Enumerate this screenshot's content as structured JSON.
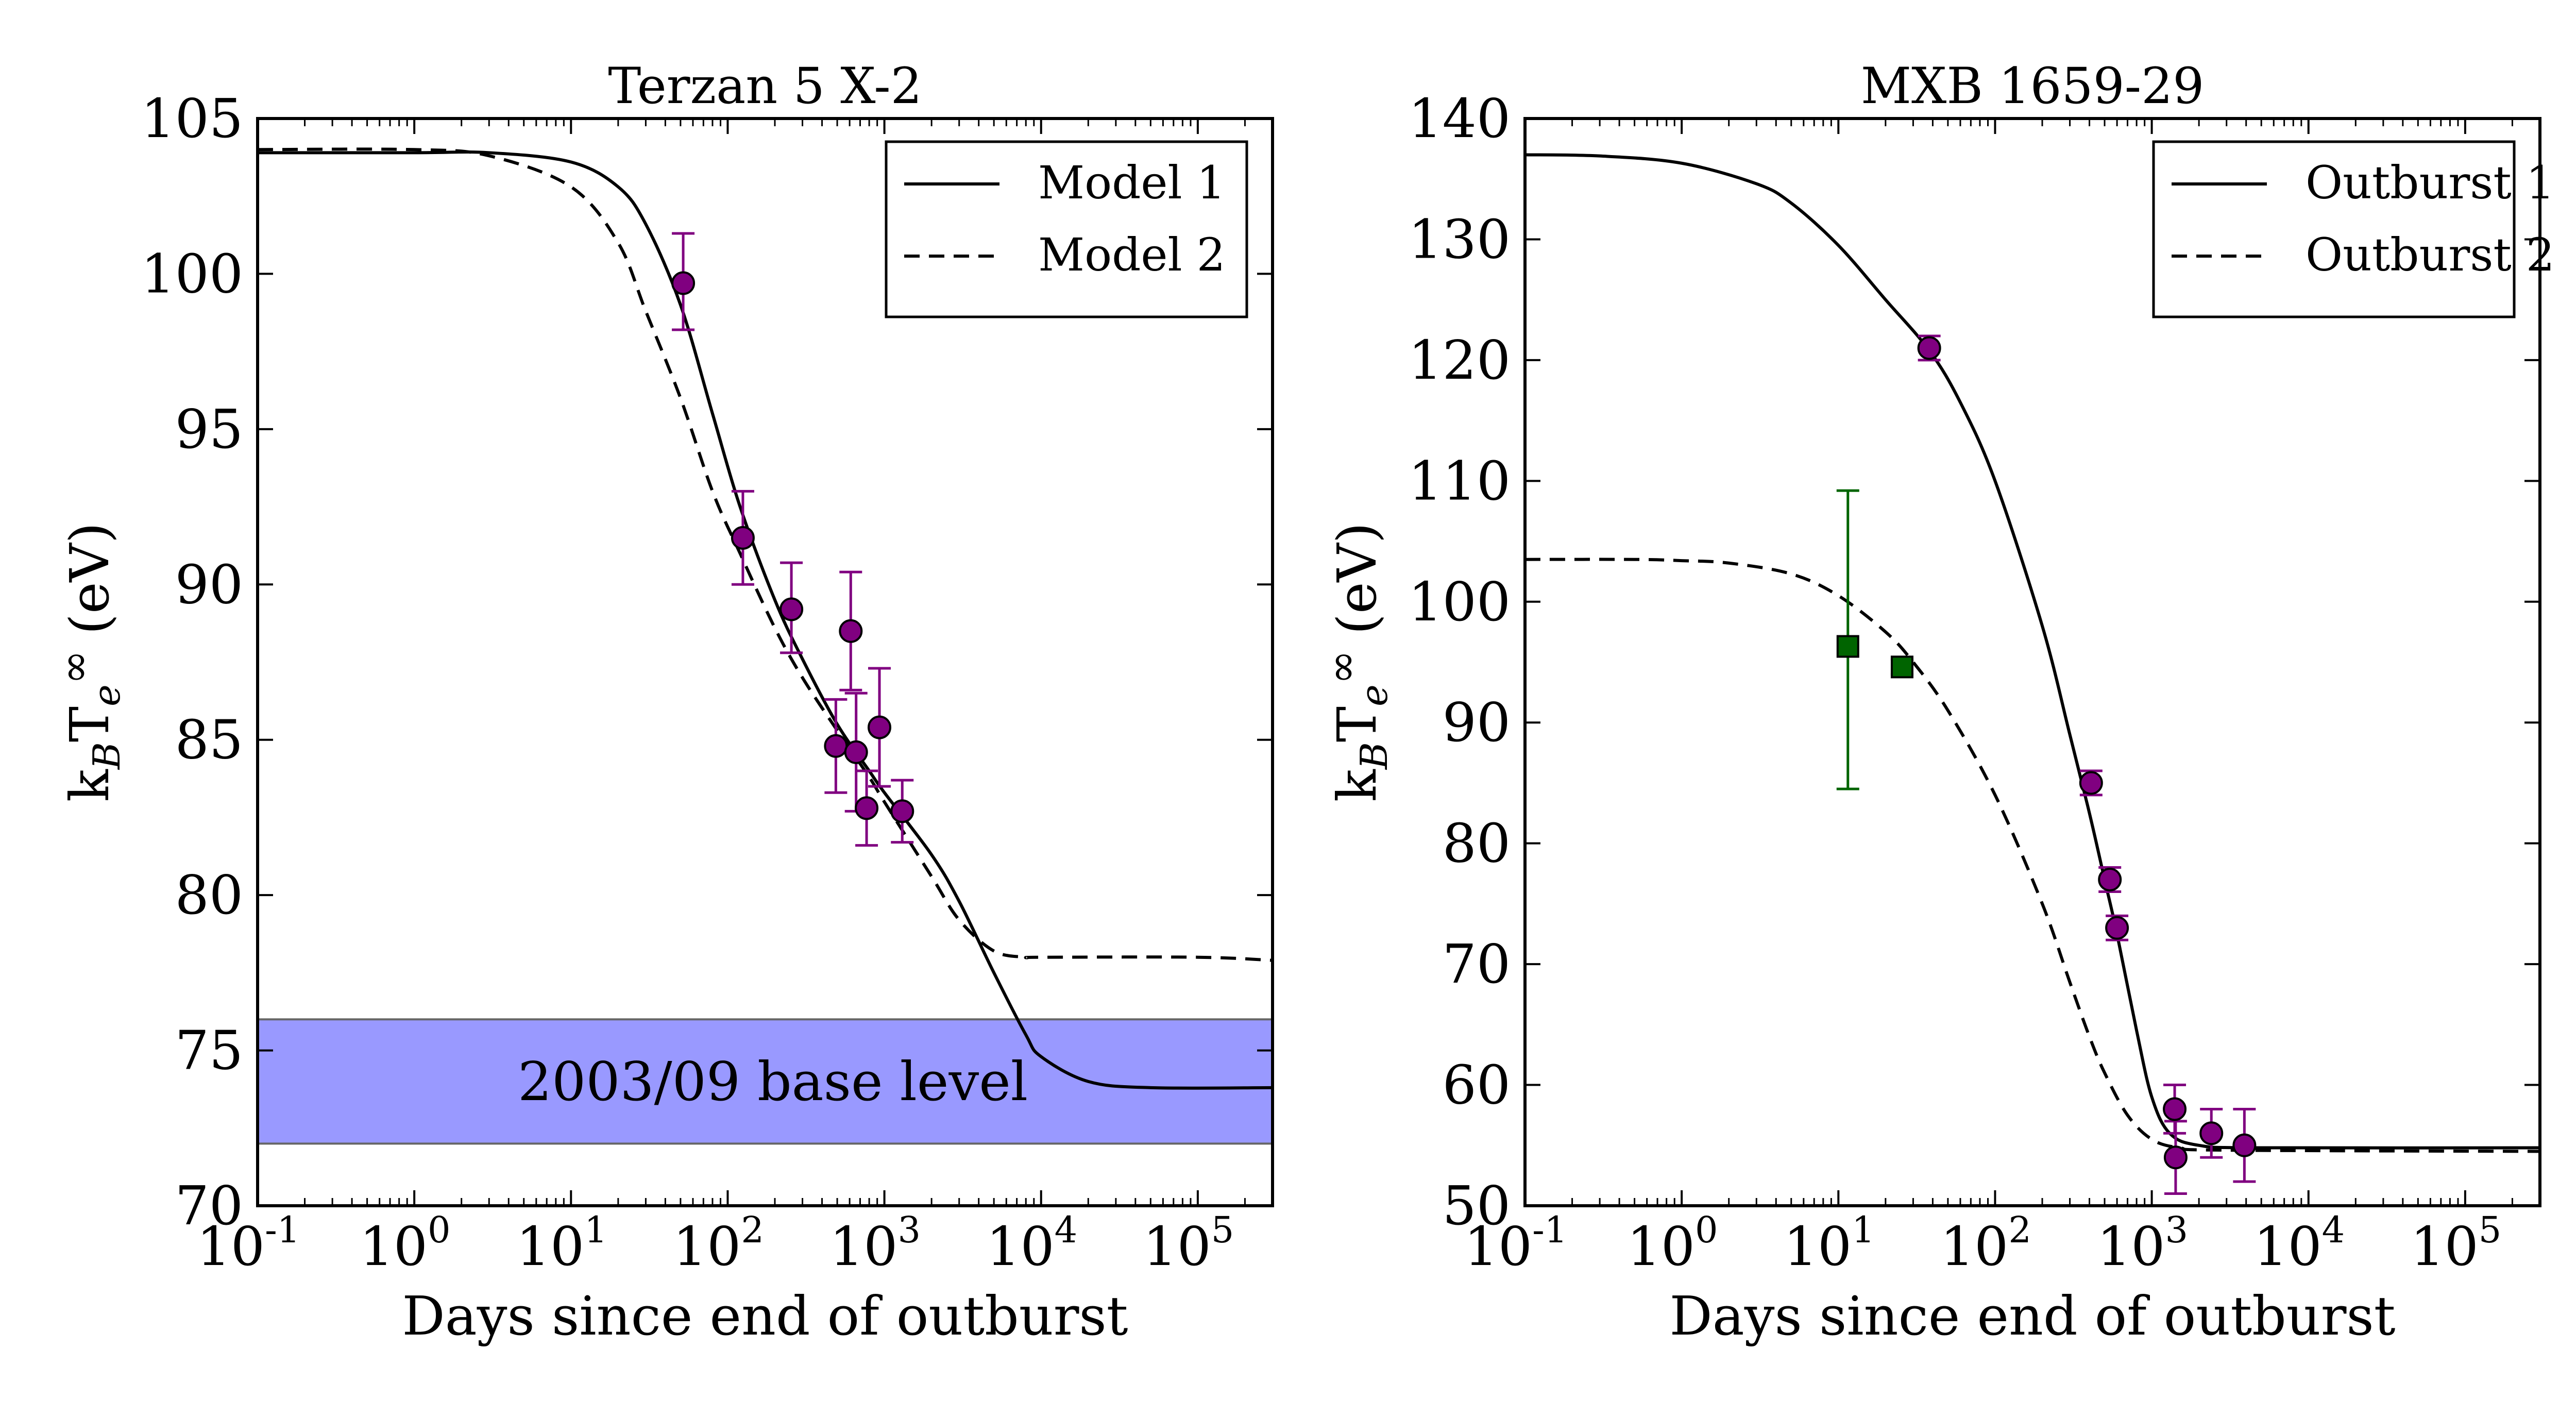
{
  "chart_data": [
    {
      "type": "scatter",
      "title": "Terzan 5 X-2",
      "xlabel": "Days since end of outburst",
      "ylabel_main": "k",
      "ylabel_sub1": "B",
      "ylabel_mid": "T",
      "ylabel_sub2": "e",
      "ylabel_sup": "∞",
      "ylabel_unit": "(eV)",
      "xscale": "log",
      "xlim": [
        0.1,
        300000
      ],
      "ylim": [
        70,
        105
      ],
      "xticks": [
        {
          "value": 0.1,
          "base": "10",
          "exp": "-1"
        },
        {
          "value": 1,
          "base": "10",
          "exp": "0"
        },
        {
          "value": 10,
          "base": "10",
          "exp": "1"
        },
        {
          "value": 100,
          "base": "10",
          "exp": "2"
        },
        {
          "value": 1000,
          "base": "10",
          "exp": "3"
        },
        {
          "value": 10000,
          "base": "10",
          "exp": "4"
        },
        {
          "value": 100000,
          "base": "10",
          "exp": "5"
        }
      ],
      "yticks": [
        70,
        75,
        80,
        85,
        90,
        95,
        100,
        105
      ],
      "legend_position": "top-right",
      "legend": [
        {
          "label": "Model 1",
          "style": "solid"
        },
        {
          "label": "Model 2",
          "style": "dashed"
        }
      ],
      "band": {
        "label": "2003/09 base level",
        "ymin": 72,
        "ymax": 76,
        "color": "#9999ff"
      },
      "lines": [
        {
          "name": "Model 1",
          "style": "solid",
          "color": "#000000",
          "points": [
            [
              0.1,
              103.9
            ],
            [
              1,
              103.9
            ],
            [
              3,
              103.9
            ],
            [
              10,
              103.6
            ],
            [
              20,
              102.8
            ],
            [
              30,
              101.6
            ],
            [
              50,
              99.0
            ],
            [
              80,
              95.5
            ],
            [
              120,
              92.5
            ],
            [
              200,
              89.5
            ],
            [
              300,
              87.6
            ],
            [
              500,
              85.5
            ],
            [
              800,
              84.0
            ],
            [
              1000,
              83.3
            ],
            [
              2000,
              81.3
            ],
            [
              3000,
              79.8
            ],
            [
              5000,
              77.5
            ],
            [
              8000,
              75.5
            ],
            [
              10000,
              74.8
            ],
            [
              20000,
              74.0
            ],
            [
              50000,
              73.8
            ],
            [
              300000,
              73.8
            ]
          ]
        },
        {
          "name": "Model 2",
          "style": "dashed",
          "color": "#000000",
          "points": [
            [
              0.1,
              104.0
            ],
            [
              1,
              104.0
            ],
            [
              3,
              103.8
            ],
            [
              10,
              102.8
            ],
            [
              20,
              101.0
            ],
            [
              30,
              98.8
            ],
            [
              50,
              96.0
            ],
            [
              80,
              93.0
            ],
            [
              120,
              91.0
            ],
            [
              200,
              88.6
            ],
            [
              300,
              87.0
            ],
            [
              500,
              85.3
            ],
            [
              800,
              83.8
            ],
            [
              1000,
              83.0
            ],
            [
              2000,
              80.6
            ],
            [
              3000,
              79.2
            ],
            [
              5000,
              78.2
            ],
            [
              8000,
              78.0
            ],
            [
              10000,
              78.0
            ],
            [
              100000,
              78.0
            ],
            [
              300000,
              77.9
            ]
          ]
        }
      ],
      "points": [
        {
          "x": 52,
          "y": 99.7,
          "yerr_low": 98.2,
          "yerr_high": 101.3,
          "marker": "circle",
          "color": "#800080"
        },
        {
          "x": 125,
          "y": 91.5,
          "yerr_low": 90.0,
          "yerr_high": 93.0,
          "marker": "circle",
          "color": "#800080"
        },
        {
          "x": 255,
          "y": 89.2,
          "yerr_low": 87.8,
          "yerr_high": 90.7,
          "marker": "circle",
          "color": "#800080"
        },
        {
          "x": 490,
          "y": 84.8,
          "yerr_low": 83.3,
          "yerr_high": 86.3,
          "marker": "circle",
          "color": "#800080"
        },
        {
          "x": 610,
          "y": 88.5,
          "yerr_low": 86.6,
          "yerr_high": 90.4,
          "marker": "circle",
          "color": "#800080"
        },
        {
          "x": 660,
          "y": 84.6,
          "yerr_low": 82.7,
          "yerr_high": 86.5,
          "marker": "circle",
          "color": "#800080"
        },
        {
          "x": 770,
          "y": 82.8,
          "yerr_low": 81.6,
          "yerr_high": 84.0,
          "marker": "circle",
          "color": "#800080"
        },
        {
          "x": 930,
          "y": 85.4,
          "yerr_low": 83.5,
          "yerr_high": 87.3,
          "marker": "circle",
          "color": "#800080"
        },
        {
          "x": 1300,
          "y": 82.7,
          "yerr_low": 81.7,
          "yerr_high": 83.7,
          "marker": "circle",
          "color": "#800080"
        }
      ]
    },
    {
      "type": "scatter",
      "title": "MXB 1659-29",
      "xlabel": "Days since end of outburst",
      "ylabel_main": "k",
      "ylabel_sub1": "B",
      "ylabel_mid": "T",
      "ylabel_sub2": "e",
      "ylabel_sup": "∞",
      "ylabel_unit": "(eV)",
      "xscale": "log",
      "xlim": [
        0.1,
        300000
      ],
      "ylim": [
        50,
        140
      ],
      "xticks": [
        {
          "value": 0.1,
          "base": "10",
          "exp": "-1"
        },
        {
          "value": 1,
          "base": "10",
          "exp": "0"
        },
        {
          "value": 10,
          "base": "10",
          "exp": "1"
        },
        {
          "value": 100,
          "base": "10",
          "exp": "2"
        },
        {
          "value": 1000,
          "base": "10",
          "exp": "3"
        },
        {
          "value": 10000,
          "base": "10",
          "exp": "4"
        },
        {
          "value": 100000,
          "base": "10",
          "exp": "5"
        }
      ],
      "yticks": [
        50,
        60,
        70,
        80,
        90,
        100,
        110,
        120,
        130,
        140
      ],
      "legend_position": "top-right",
      "legend": [
        {
          "label": "Outburst 1",
          "style": "solid"
        },
        {
          "label": "Outburst 2",
          "style": "dashed"
        }
      ],
      "lines": [
        {
          "name": "Outburst 1",
          "style": "solid",
          "color": "#000000",
          "points": [
            [
              0.1,
              137.0
            ],
            [
              0.3,
              136.9
            ],
            [
              1,
              136.3
            ],
            [
              3,
              134.6
            ],
            [
              5,
              133.0
            ],
            [
              10,
              129.5
            ],
            [
              20,
              125.0
            ],
            [
              38,
              120.8
            ],
            [
              60,
              116.5
            ],
            [
              100,
              110.0
            ],
            [
              200,
              98.0
            ],
            [
              300,
              89.0
            ],
            [
              400,
              82.5
            ],
            [
              500,
              77.0
            ],
            [
              600,
              72.5
            ],
            [
              800,
              64.5
            ],
            [
              1000,
              59.0
            ],
            [
              1300,
              56.0
            ],
            [
              2000,
              55.0
            ],
            [
              5000,
              54.8
            ],
            [
              300000,
              54.8
            ]
          ]
        },
        {
          "name": "Outburst 2",
          "style": "dashed",
          "color": "#000000",
          "points": [
            [
              0.1,
              103.5
            ],
            [
              0.5,
              103.5
            ],
            [
              1,
              103.4
            ],
            [
              2,
              103.2
            ],
            [
              5,
              102.3
            ],
            [
              10,
              100.5
            ],
            [
              20,
              97.5
            ],
            [
              30,
              95.0
            ],
            [
              50,
              91.0
            ],
            [
              100,
              84.0
            ],
            [
              200,
              75.0
            ],
            [
              300,
              68.5
            ],
            [
              400,
              64.0
            ],
            [
              500,
              61.0
            ],
            [
              700,
              57.5
            ],
            [
              1000,
              55.5
            ],
            [
              1500,
              54.8
            ],
            [
              3000,
              54.6
            ],
            [
              300000,
              54.5
            ]
          ]
        }
      ],
      "points": [
        {
          "x": 38,
          "y": 121.0,
          "yerr_low": 120.0,
          "yerr_high": 122.0,
          "marker": "circle",
          "color": "#800080"
        },
        {
          "x": 410,
          "y": 85.0,
          "yerr_low": 84.0,
          "yerr_high": 86.0,
          "marker": "circle",
          "color": "#800080"
        },
        {
          "x": 540,
          "y": 77.0,
          "yerr_low": 76.0,
          "yerr_high": 78.0,
          "marker": "circle",
          "color": "#800080"
        },
        {
          "x": 600,
          "y": 73.0,
          "yerr_low": 72.0,
          "yerr_high": 74.0,
          "marker": "circle",
          "color": "#800080"
        },
        {
          "x": 1400,
          "y": 58.0,
          "yerr_low": 56.0,
          "yerr_high": 60.0,
          "marker": "circle",
          "color": "#800080"
        },
        {
          "x": 1420,
          "y": 54.0,
          "yerr_low": 51.0,
          "yerr_high": 57.0,
          "marker": "circle",
          "color": "#800080"
        },
        {
          "x": 2400,
          "y": 56.0,
          "yerr_low": 54.0,
          "yerr_high": 58.0,
          "marker": "circle",
          "color": "#800080"
        },
        {
          "x": 3900,
          "y": 55.0,
          "yerr_low": 52.0,
          "yerr_high": 58.0,
          "marker": "circle",
          "color": "#800080"
        },
        {
          "x": 11.5,
          "y": 96.3,
          "yerr_low": 84.5,
          "yerr_high": 109.2,
          "marker": "square",
          "color": "#006400"
        },
        {
          "x": 25.5,
          "y": 94.6,
          "yerr_low": 94.0,
          "yerr_high": 95.2,
          "marker": "square",
          "color": "#006400"
        }
      ]
    }
  ]
}
